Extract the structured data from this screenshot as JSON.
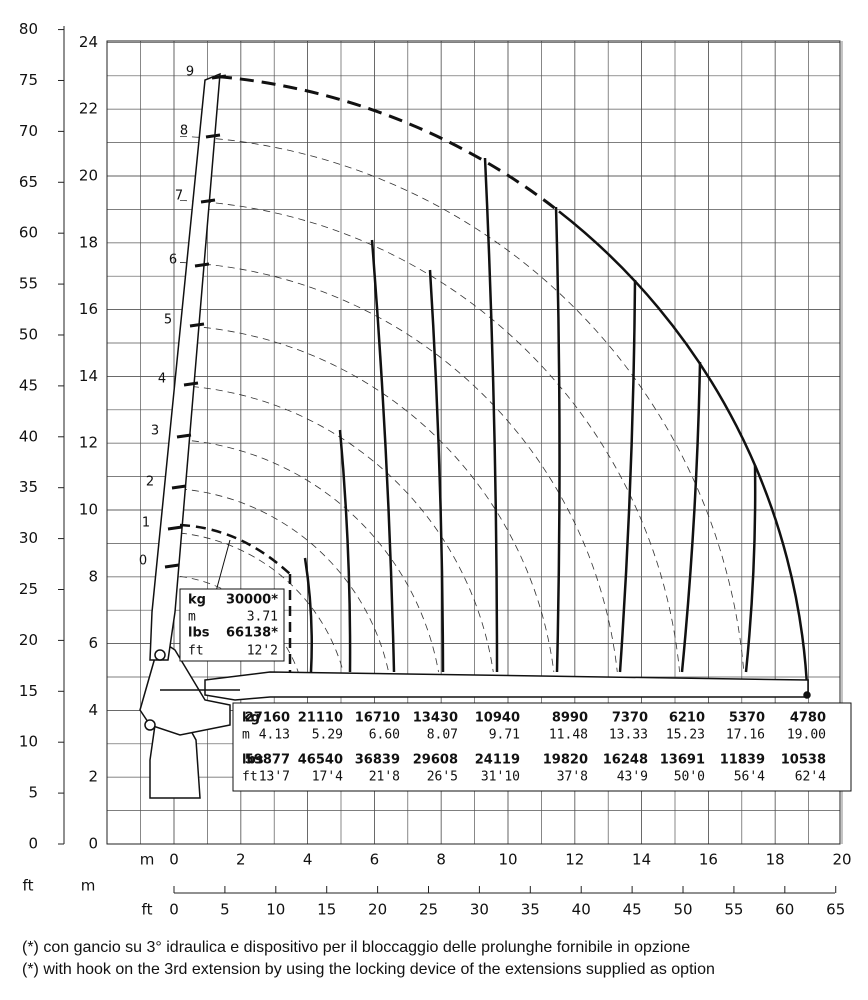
{
  "axes": {
    "left_ft": {
      "unit": "ft",
      "ticks": [
        0,
        5,
        10,
        15,
        20,
        25,
        30,
        35,
        40,
        45,
        50,
        55,
        60,
        65,
        70,
        75,
        80
      ]
    },
    "left_m": {
      "unit": "m",
      "ticks": [
        0,
        2,
        4,
        6,
        8,
        10,
        12,
        14,
        16,
        18,
        20,
        22,
        24
      ]
    },
    "bottom_m": {
      "unit": "m",
      "ticks": [
        0,
        2,
        4,
        6,
        8,
        10,
        12,
        14,
        16,
        18,
        20
      ]
    },
    "bottom_ft": {
      "unit": "ft",
      "ticks": [
        0,
        5,
        10,
        15,
        20,
        25,
        30,
        35,
        40,
        45,
        50,
        55,
        60,
        65
      ]
    }
  },
  "boom_sections": [
    0,
    1,
    2,
    3,
    4,
    5,
    6,
    7,
    8,
    9
  ],
  "max_load": {
    "rows": [
      [
        "kg",
        "30000*"
      ],
      [
        "m",
        "3.71"
      ],
      [
        "lbs",
        "66138*"
      ],
      [
        "ft",
        "12'2"
      ]
    ]
  },
  "table": {
    "rows": [
      [
        "kg",
        "27160",
        "21110",
        "16710",
        "13430",
        "10940",
        "8990",
        "7370",
        "6210",
        "5370",
        "4780"
      ],
      [
        "m",
        "4.13",
        "5.29",
        "6.60",
        "8.07",
        "9.71",
        "11.48",
        "13.33",
        "15.23",
        "17.16",
        "19.00"
      ],
      [
        "lbs",
        "59877",
        "46540",
        "36839",
        "29608",
        "24119",
        "19820",
        "16248",
        "13691",
        "11839",
        "10538"
      ],
      [
        "ft",
        "13'7",
        "17'4",
        "21'8",
        "26'5",
        "31'10",
        "37'8",
        "43'9",
        "50'0",
        "56'4",
        "62'4"
      ]
    ]
  },
  "footnotes": [
    "(*) con gancio su 3° idraulica e dispositivo per il bloccaggio delle prolunghe fornibile in opzione",
    "(*) with hook on the 3rd extension by using the locking device of the extensions supplied as option"
  ]
}
